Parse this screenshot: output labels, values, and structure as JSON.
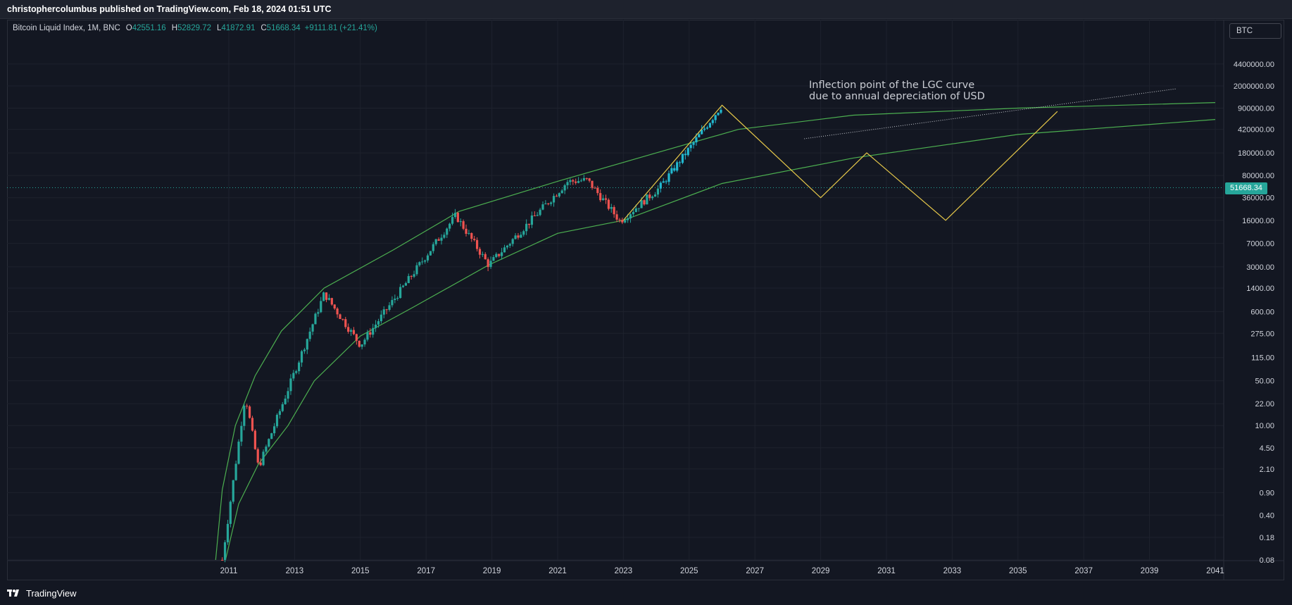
{
  "header": {
    "published_line": "christophercolumbus published on TradingView.com, Feb 18, 2024 01:51 UTC"
  },
  "legend": {
    "symbol": "Bitcoin Liquid Index, 1M, BNC",
    "open_label": "O",
    "open": "42551.16",
    "high_label": "H",
    "high": "52829.72",
    "low_label": "L",
    "low": "41872.91",
    "close_label": "C",
    "close": "51668.34",
    "change": "+9111.81 (+21.41%)"
  },
  "symbol_box": "BTC",
  "annotation": {
    "line1": "Inflection point of the LGC curve",
    "line2": "due to annual depreciation of USD"
  },
  "last_price_tag": "51668.34",
  "footer": {
    "brand": "TradingView"
  },
  "colors": {
    "background": "#131722",
    "up": "#26a69a",
    "down": "#ef5350",
    "projection": "#22b8cf",
    "lgc_curve": "#4caf50",
    "zigzag": "#e6c84a"
  },
  "chart_data": {
    "type": "candlestick",
    "y_scale": "log",
    "x_ticks": [
      "2011",
      "2013",
      "2015",
      "2017",
      "2019",
      "2021",
      "2023",
      "2025",
      "2027",
      "2029",
      "2031",
      "2033",
      "2035",
      "2037",
      "2039",
      "2041"
    ],
    "y_ticks": [
      "4400000.00",
      "2000000.00",
      "900000.00",
      "420000.00",
      "180000.00",
      "80000.00",
      "36000.00",
      "16000.00",
      "7000.00",
      "3000.00",
      "1400.00",
      "600.00",
      "275.00",
      "115.00",
      "50.00",
      "22.00",
      "10.00",
      "4.50",
      "2.10",
      "0.90",
      "0.40",
      "0.18",
      "0.08"
    ],
    "key_points": [
      {
        "date": "2010.8",
        "price": 0.08
      },
      {
        "date": "2011.5",
        "price": 30
      },
      {
        "date": "2011.9",
        "price": 2.2
      },
      {
        "date": "2013.9",
        "price": 1150
      },
      {
        "date": "2015.0",
        "price": 180
      },
      {
        "date": "2017.9",
        "price": 19000
      },
      {
        "date": "2018.9",
        "price": 3200
      },
      {
        "date": "2021.3",
        "price": 64000
      },
      {
        "date": "2021.9",
        "price": 68000
      },
      {
        "date": "2022.9",
        "price": 15500
      },
      {
        "date": "2024.1",
        "price": 51668.34
      },
      {
        "date": "2026.0",
        "price": 1000000
      }
    ],
    "zigzag_projection": [
      {
        "date": "2023.0",
        "price": 16000
      },
      {
        "date": "2026.0",
        "price": 1000000
      },
      {
        "date": "2029.0",
        "price": 36000
      },
      {
        "date": "2030.4",
        "price": 180000
      },
      {
        "date": "2032.8",
        "price": 16000
      },
      {
        "date": "2036.2",
        "price": 800000
      }
    ]
  }
}
